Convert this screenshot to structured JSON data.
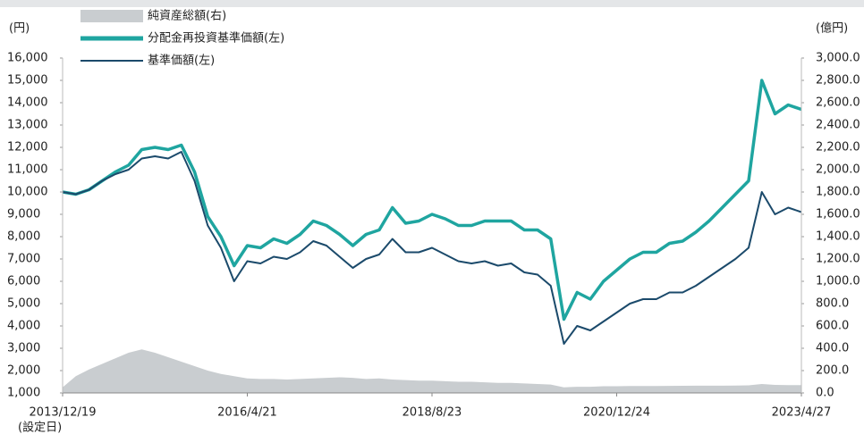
{
  "chart_data": {
    "type": "line",
    "y_unit_label": "(円)",
    "y2_unit_label": "(億円)",
    "first_date_note": "(設定日)",
    "categories": [
      "2013/12/19",
      null,
      null,
      null,
      null,
      null,
      null,
      null,
      null,
      null,
      null,
      null,
      null,
      null,
      "2016/4/21",
      null,
      null,
      null,
      null,
      null,
      null,
      null,
      null,
      null,
      null,
      null,
      null,
      null,
      "2018/8/23",
      null,
      null,
      null,
      null,
      null,
      null,
      null,
      null,
      null,
      null,
      null,
      null,
      null,
      "2020/12/24",
      null,
      null,
      null,
      null,
      null,
      null,
      null,
      null,
      null,
      null,
      null,
      null,
      null,
      "2023/4/27"
    ],
    "series": [
      {
        "name": "純資産総額(右)",
        "kind": "area",
        "axis": "y2",
        "color": "#c9cdd0",
        "values": [
          50,
          150,
          210,
          260,
          310,
          360,
          390,
          360,
          320,
          280,
          240,
          200,
          170,
          150,
          130,
          125,
          125,
          120,
          125,
          130,
          135,
          140,
          135,
          125,
          130,
          120,
          115,
          110,
          110,
          105,
          100,
          100,
          95,
          90,
          90,
          85,
          80,
          75,
          50,
          55,
          55,
          60,
          60,
          62,
          62,
          62,
          63,
          64,
          65,
          65,
          65,
          66,
          68,
          80,
          72,
          70,
          70
        ]
      },
      {
        "name": "分配金再投資基準価額(左)",
        "kind": "line",
        "color": "#1fa5a0",
        "values": [
          10000,
          9900,
          10100,
          10500,
          10900,
          11200,
          11900,
          12000,
          11900,
          12100,
          10900,
          8900,
          8000,
          6700,
          7600,
          7500,
          7900,
          7700,
          8100,
          8700,
          8500,
          8100,
          7600,
          8100,
          8300,
          9300,
          8600,
          8700,
          9000,
          8800,
          8500,
          8500,
          8700,
          8700,
          8700,
          8300,
          8300,
          7900,
          4300,
          5500,
          5200,
          6000,
          6500,
          7000,
          7300,
          7300,
          7700,
          7800,
          8200,
          8700,
          9300,
          9900,
          10500,
          15000,
          13500,
          13900,
          13700
        ]
      },
      {
        "name": "基準価額(左)",
        "kind": "line",
        "color": "#1b4a6b",
        "values": [
          10000,
          9900,
          10100,
          10500,
          10800,
          11000,
          11500,
          11600,
          11500,
          11800,
          10500,
          8500,
          7500,
          6000,
          6900,
          6800,
          7100,
          7000,
          7300,
          7800,
          7600,
          7100,
          6600,
          7000,
          7200,
          7900,
          7300,
          7300,
          7500,
          7200,
          6900,
          6800,
          6900,
          6700,
          6800,
          6400,
          6300,
          5800,
          3200,
          4000,
          3800,
          4200,
          4600,
          5000,
          5200,
          5200,
          5500,
          5500,
          5800,
          6200,
          6600,
          7000,
          7500,
          10000,
          9000,
          9300,
          9100
        ]
      }
    ],
    "ylim": [
      1000,
      16000
    ],
    "yticks": [
      {
        "value": 1000,
        "label": "1,000"
      },
      {
        "value": 2000,
        "label": "2,000"
      },
      {
        "value": 3000,
        "label": "3,000"
      },
      {
        "value": 4000,
        "label": "4,000"
      },
      {
        "value": 5000,
        "label": "5,000"
      },
      {
        "value": 6000,
        "label": "6,000"
      },
      {
        "value": 7000,
        "label": "7,000"
      },
      {
        "value": 8000,
        "label": "8,000"
      },
      {
        "value": 9000,
        "label": "9,000"
      },
      {
        "value": 10000,
        "label": "10,000"
      },
      {
        "value": 11000,
        "label": "11,000"
      },
      {
        "value": 12000,
        "label": "12,000"
      },
      {
        "value": 13000,
        "label": "13,000"
      },
      {
        "value": 14000,
        "label": "14,000"
      },
      {
        "value": 15000,
        "label": "15,000"
      },
      {
        "value": 16000,
        "label": "16,000"
      }
    ],
    "y2lim": [
      0,
      3000
    ],
    "y2ticks": [
      {
        "value": 0,
        "label": "0.0"
      },
      {
        "value": 200,
        "label": "200.0"
      },
      {
        "value": 400,
        "label": "400.0"
      },
      {
        "value": 600,
        "label": "600.0"
      },
      {
        "value": 800,
        "label": "800.0"
      },
      {
        "value": 1000,
        "label": "1,000.0"
      },
      {
        "value": 1200,
        "label": "1,200.0"
      },
      {
        "value": 1400,
        "label": "1,400.0"
      },
      {
        "value": 1600,
        "label": "1,600.0"
      },
      {
        "value": 1800,
        "label": "1,800.0"
      },
      {
        "value": 2000,
        "label": "2,000.0"
      },
      {
        "value": 2200,
        "label": "2,200.0"
      },
      {
        "value": 2400,
        "label": "2,400.0"
      },
      {
        "value": 2600,
        "label": "2,600.0"
      },
      {
        "value": 2800,
        "label": "2,800.0"
      },
      {
        "value": 3000,
        "label": "3,000.0"
      }
    ],
    "grid": false
  }
}
